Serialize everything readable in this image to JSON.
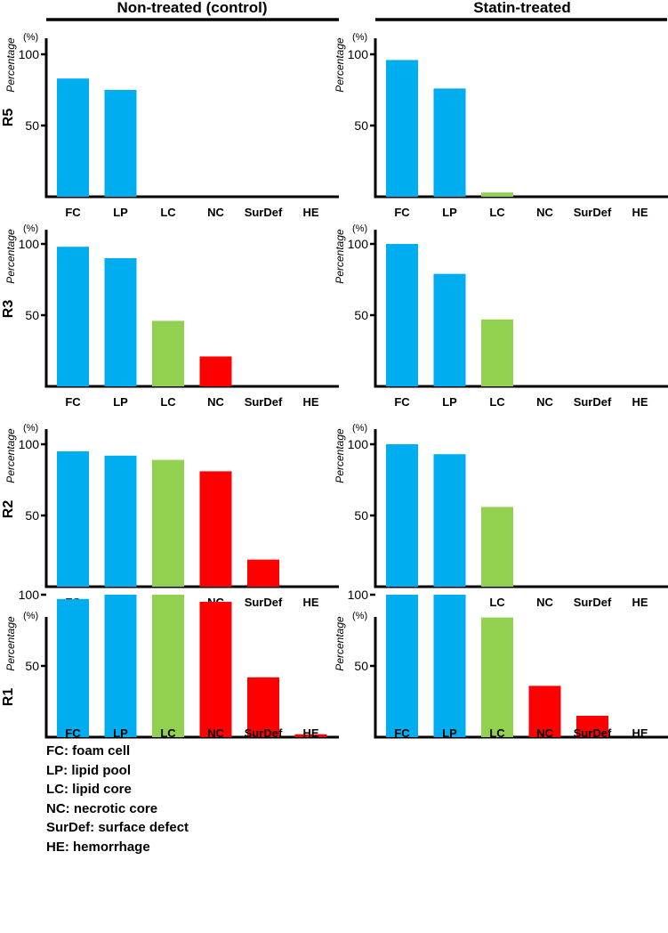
{
  "columns": [
    "Non-treated (control)",
    "Statin-treated"
  ],
  "colors": {
    "FC": "#00AEEF",
    "LP": "#00AEEF",
    "LC": "#92D050",
    "NC": "#FF0000",
    "SurDef": "#FF0000",
    "HE": "#FF0000",
    "axis": "#000000"
  },
  "axis_text": {
    "ylabel": "Percentage",
    "unit": "(%)",
    "ticks": [
      50,
      100
    ]
  },
  "chart_data": [
    {
      "type": "bar",
      "row": "R5",
      "column": "Non-treated (control)",
      "categories": [
        "FC",
        "LP",
        "LC",
        "NC",
        "SurDef",
        "HE"
      ],
      "values": [
        83,
        75,
        0,
        0,
        0,
        0
      ],
      "ylabel": "Percentage",
      "ylim": [
        0,
        110
      ]
    },
    {
      "type": "bar",
      "row": "R5",
      "column": "Statin-treated",
      "categories": [
        "FC",
        "LP",
        "LC",
        "NC",
        "SurDef",
        "HE"
      ],
      "values": [
        96,
        76,
        3,
        0,
        0,
        0
      ],
      "ylabel": "Percentage",
      "ylim": [
        0,
        110
      ]
    },
    {
      "type": "bar",
      "row": "R3",
      "column": "Non-treated (control)",
      "categories": [
        "FC",
        "LP",
        "LC",
        "NC",
        "SurDef",
        "HE"
      ],
      "values": [
        98,
        90,
        46,
        21,
        0,
        0
      ],
      "ylabel": "Percentage",
      "ylim": [
        0,
        110
      ]
    },
    {
      "type": "bar",
      "row": "R3",
      "column": "Statin-treated",
      "categories": [
        "FC",
        "LP",
        "LC",
        "NC",
        "SurDef",
        "HE"
      ],
      "values": [
        100,
        79,
        47,
        0,
        0,
        0
      ],
      "ylabel": "Percentage",
      "ylim": [
        0,
        110
      ]
    },
    {
      "type": "bar",
      "row": "R2",
      "column": "Non-treated (control)",
      "categories": [
        "FC",
        "LP",
        "LC",
        "NC",
        "SurDef",
        "HE"
      ],
      "values": [
        95,
        92,
        89,
        81,
        19,
        0
      ],
      "ylabel": "Percentage",
      "ylim": [
        0,
        110
      ]
    },
    {
      "type": "bar",
      "row": "R2",
      "column": "Statin-treated",
      "categories": [
        "FC",
        "LP",
        "LC",
        "NC",
        "SurDef",
        "HE"
      ],
      "values": [
        100,
        93,
        56,
        0,
        0,
        0
      ],
      "ylabel": "Percentage",
      "ylim": [
        0,
        110
      ]
    },
    {
      "type": "bar",
      "row": "R1",
      "column": "Non-treated (control)",
      "categories": [
        "FC",
        "LP",
        "LC",
        "NC",
        "SurDef",
        "HE"
      ],
      "values": [
        97,
        100,
        100,
        95,
        42,
        2
      ],
      "ylabel": "Percentage",
      "ylim": [
        0,
        110
      ]
    },
    {
      "type": "bar",
      "row": "R1",
      "column": "Statin-treated",
      "categories": [
        "FC",
        "LP",
        "LC",
        "NC",
        "SurDef",
        "HE"
      ],
      "values": [
        100,
        100,
        84,
        36,
        15,
        0
      ],
      "ylabel": "Percentage",
      "ylim": [
        0,
        110
      ]
    }
  ],
  "legend": [
    "FC: foam cell",
    "LP: lipid pool",
    "LC: lipid core",
    "NC: necrotic core",
    "SurDef: surface defect",
    "HE: hemorrhage"
  ]
}
